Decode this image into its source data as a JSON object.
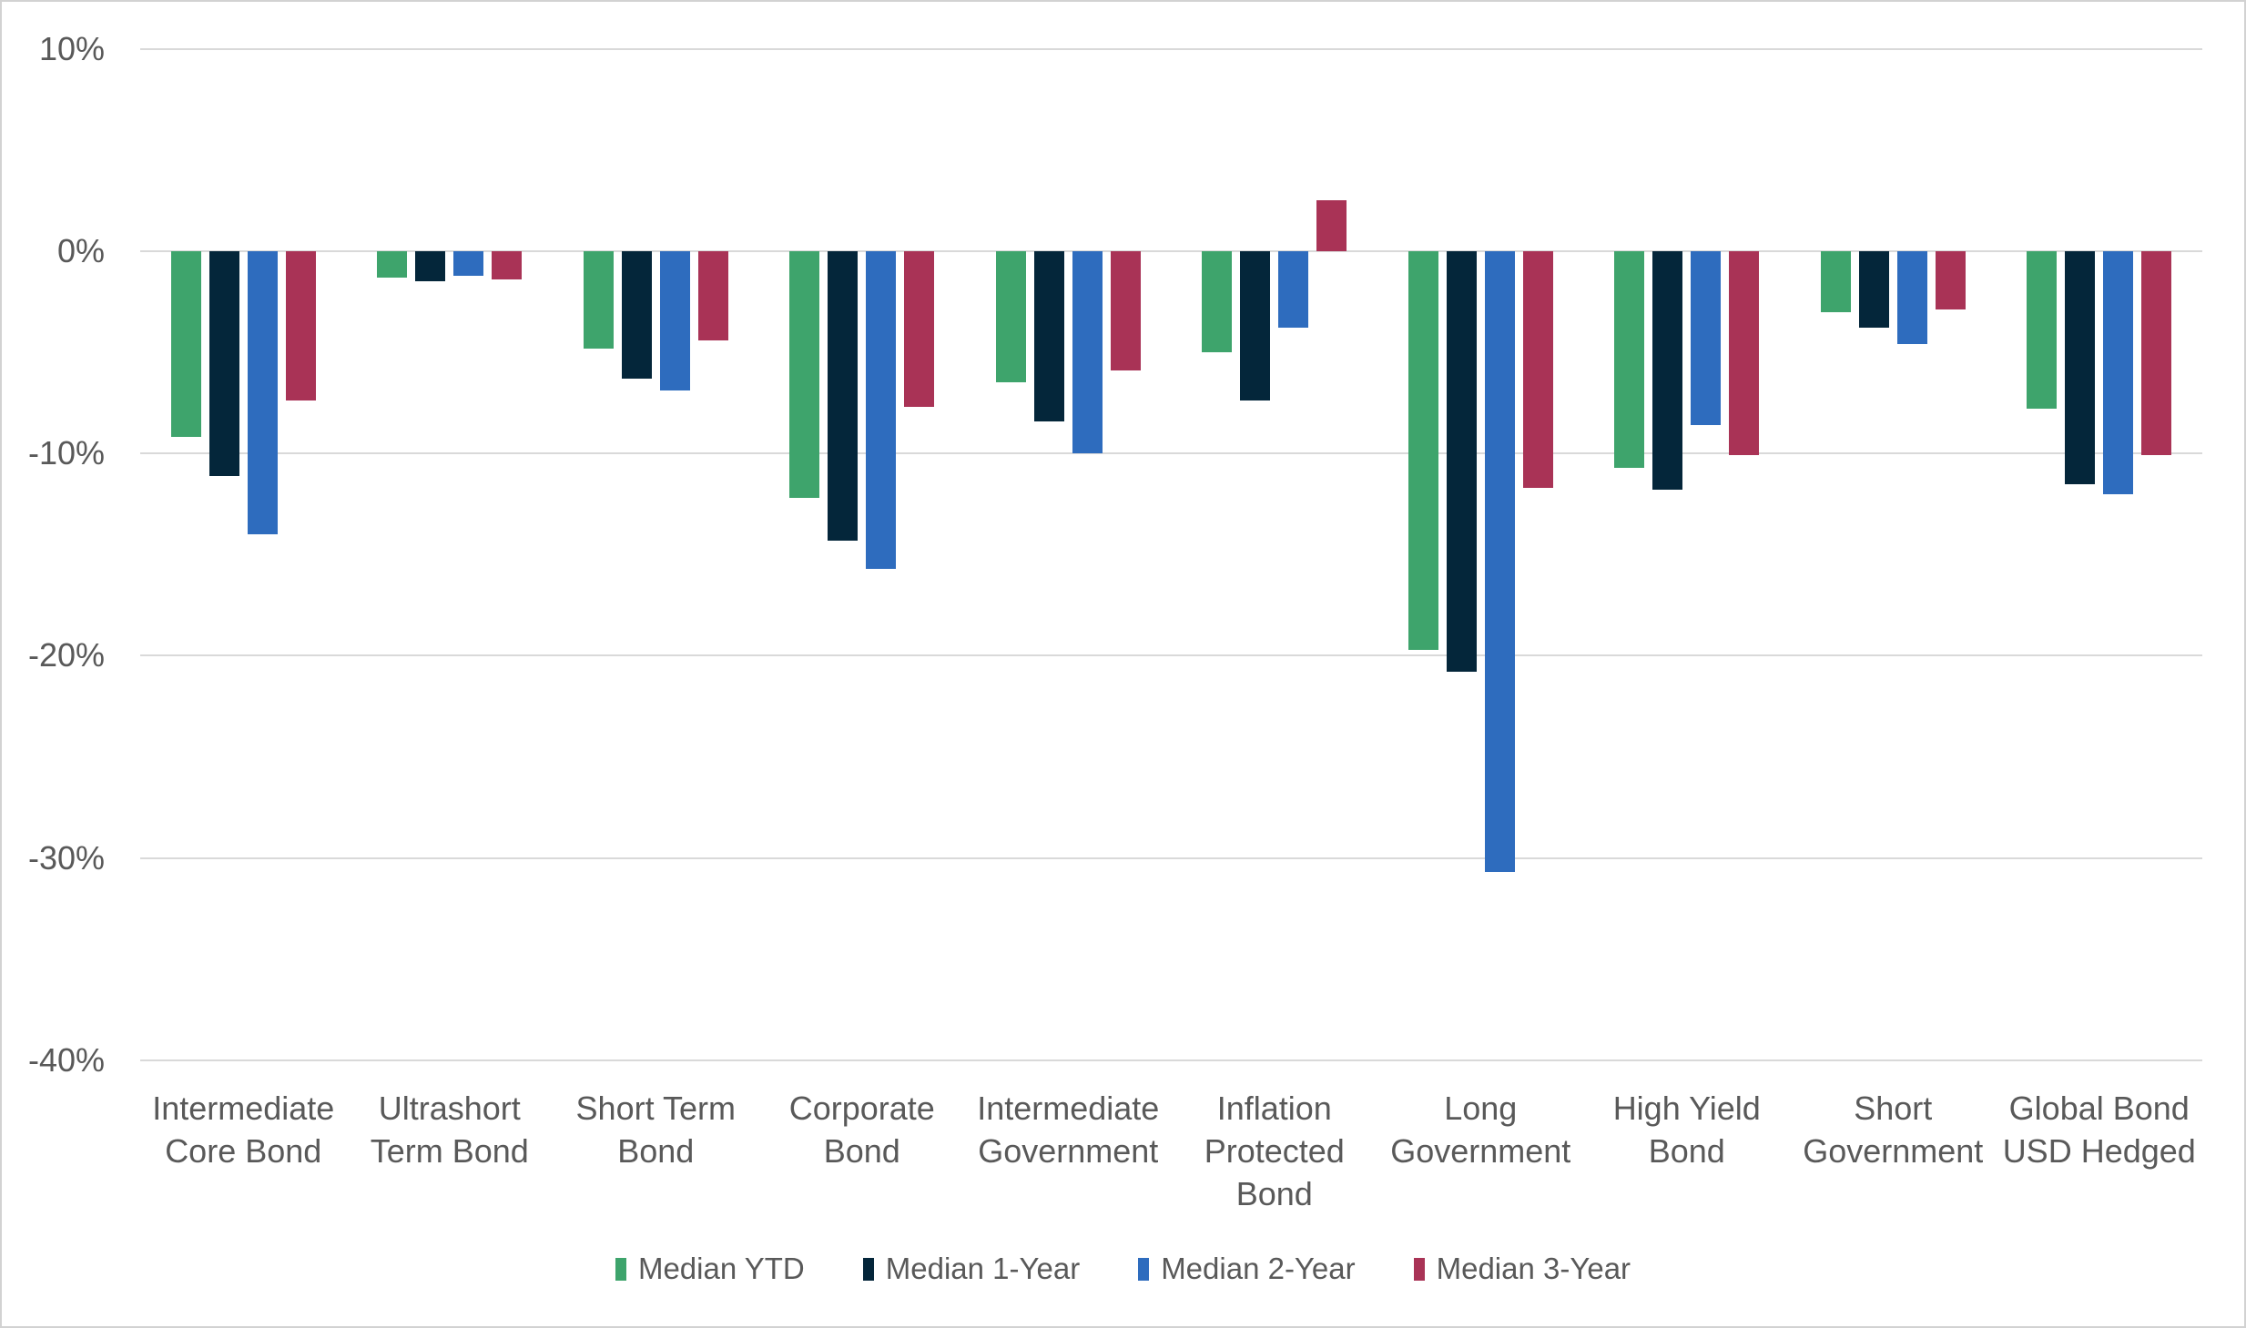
{
  "chart_data": {
    "type": "bar",
    "title": "",
    "categories": [
      "Intermediate Core Bond",
      "Ultrashort Term Bond",
      "Short Term Bond",
      "Corporate Bond",
      "Intermediate Government",
      "Inflation Protected Bond",
      "Long Government",
      "High Yield Bond",
      "Short Government",
      "Global Bond USD Hedged"
    ],
    "series": [
      {
        "name": "Median YTD",
        "color": "#3EA46C",
        "values": [
          -9.2,
          -1.3,
          -4.8,
          -12.2,
          -6.5,
          -5.0,
          -19.7,
          -10.7,
          -3.0,
          -7.8
        ]
      },
      {
        "name": "Median 1-Year",
        "color": "#04263A",
        "values": [
          -11.1,
          -1.5,
          -6.3,
          -14.3,
          -8.4,
          -7.4,
          -20.8,
          -11.8,
          -3.8,
          -11.5
        ]
      },
      {
        "name": "Median 2-Year",
        "color": "#2E6CBE",
        "values": [
          -14.0,
          -1.2,
          -6.9,
          -15.7,
          -10.0,
          -3.8,
          -30.7,
          -8.6,
          -4.6,
          -12.0
        ]
      },
      {
        "name": "Median 3-Year",
        "color": "#A93356",
        "values": [
          -7.4,
          -1.4,
          -4.4,
          -7.7,
          -5.9,
          2.5,
          -11.7,
          -10.1,
          -2.9,
          -10.1
        ]
      }
    ],
    "ylim": [
      -40,
      10
    ],
    "yticks": [
      10,
      0,
      -10,
      -20,
      -30,
      -40
    ],
    "ytick_labels": [
      "10%",
      "0%",
      "-10%",
      "-20%",
      "-30%",
      "-40%"
    ],
    "grid": true,
    "legend_position": "bottom"
  },
  "colors": {
    "grid": "#D9D9D9",
    "axis_text": "#595959",
    "frame_border": "#D2D2D2",
    "background": "#FFFFFF"
  }
}
